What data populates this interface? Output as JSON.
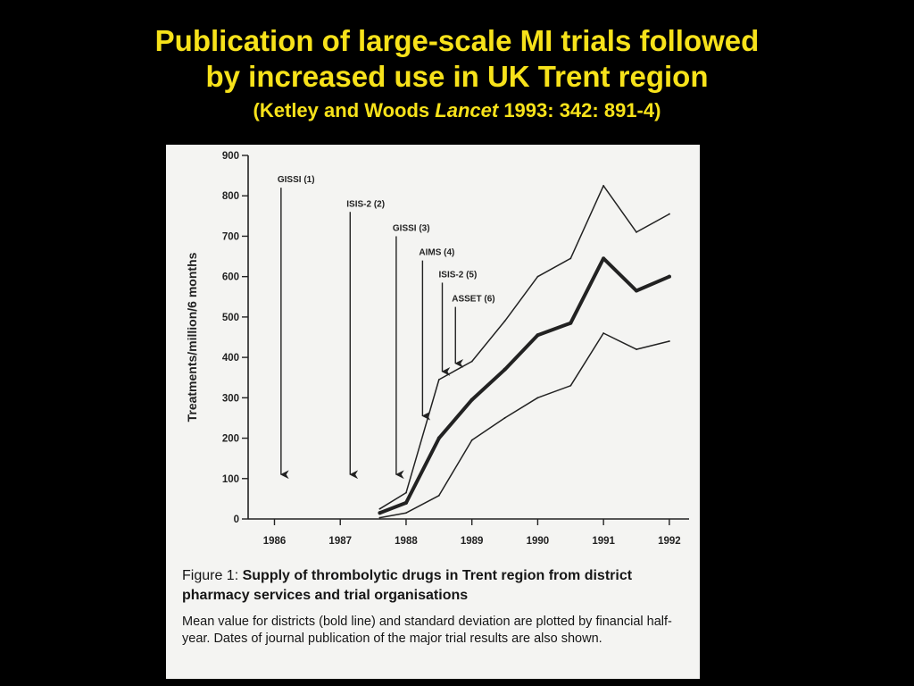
{
  "slide": {
    "title_line1": "Publication of large-scale MI trials followed",
    "title_line2": "by increased use in UK Trent region",
    "citation_prefix": "(Ketley and Woods ",
    "citation_journal": "Lancet",
    "citation_suffix": " 1993: 342: 891-4)"
  },
  "figure": {
    "caption_label": "Figure 1: ",
    "caption_title": "Supply of thrombolytic drugs in Trent region from district pharmacy services and trial organisations",
    "caption_body": "Mean value for districts (bold line) and standard deviation are plotted by financial half-year. Dates of journal publication of the major trial results are also shown."
  },
  "chart_data": {
    "type": "line",
    "title": "",
    "xlabel": "",
    "ylabel": "Treatments/million/6 months",
    "xlim": [
      1985.6,
      1992.3
    ],
    "ylim": [
      0,
      900
    ],
    "x_ticks": [
      1986,
      1987,
      1988,
      1989,
      1990,
      1991,
      1992
    ],
    "x_tick_labels": [
      "1986",
      "1987",
      "1988",
      "1989",
      "1990",
      "1991",
      "1992"
    ],
    "y_ticks": [
      0,
      100,
      200,
      300,
      400,
      500,
      600,
      700,
      800,
      900
    ],
    "y_tick_labels": [
      "0",
      "100",
      "200",
      "300",
      "400",
      "500",
      "600",
      "700",
      "800",
      "900"
    ],
    "series": [
      {
        "role": "upper",
        "style": "thin",
        "x": [
          1987.6,
          1988.0,
          1988.5,
          1989.0,
          1989.5,
          1990.0,
          1990.5,
          1991.0,
          1991.5,
          1992.0
        ],
        "y": [
          25,
          65,
          345,
          390,
          490,
          600,
          645,
          825,
          710,
          755
        ]
      },
      {
        "role": "mean",
        "style": "bold",
        "x": [
          1987.6,
          1988.0,
          1988.5,
          1989.0,
          1989.5,
          1990.0,
          1990.5,
          1991.0,
          1991.5,
          1992.0
        ],
        "y": [
          15,
          40,
          200,
          295,
          370,
          455,
          485,
          645,
          565,
          600
        ]
      },
      {
        "role": "lower",
        "style": "thin",
        "x": [
          1987.6,
          1988.0,
          1988.5,
          1989.0,
          1989.5,
          1990.0,
          1990.5,
          1991.0,
          1991.5,
          1992.0
        ],
        "y": [
          3,
          15,
          58,
          195,
          250,
          300,
          330,
          460,
          420,
          440
        ]
      }
    ],
    "annotations": [
      {
        "label": "GISSI  (1)",
        "x": 1986.1,
        "y_top": 820,
        "y_arrow": 110
      },
      {
        "label": "ISIS-2  (2)",
        "x": 1987.15,
        "y_top": 760,
        "y_arrow": 110
      },
      {
        "label": "GISSI  (3)",
        "x": 1987.85,
        "y_top": 700,
        "y_arrow": 110
      },
      {
        "label": "AIMS  (4)",
        "x": 1988.25,
        "y_top": 640,
        "y_arrow": 255
      },
      {
        "label": "ISIS-2  (5)",
        "x": 1988.55,
        "y_top": 585,
        "y_arrow": 365
      },
      {
        "label": "ASSET  (6)",
        "x": 1988.75,
        "y_top": 525,
        "y_arrow": 385
      }
    ]
  },
  "colors": {
    "title": "#f7e21a",
    "background": "#000000",
    "figure_background": "#f4f4f2",
    "ink": "#222222"
  }
}
